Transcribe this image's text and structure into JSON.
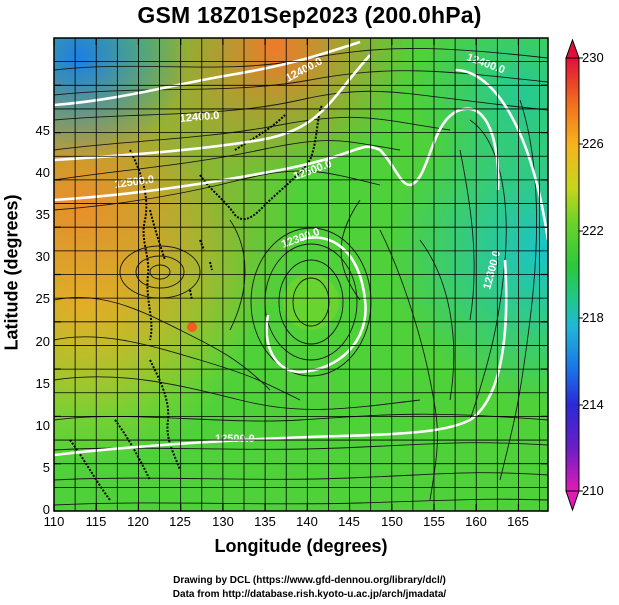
{
  "title": "GSM 18Z01Sep2023 (200.0hPa)",
  "xlabel": "Longitude (degrees)",
  "ylabel": "Latitude  (degrees)",
  "xticks": [
    "110",
    "115",
    "120",
    "125",
    "130",
    "135",
    "140",
    "145",
    "150",
    "155",
    "160",
    "165"
  ],
  "yticks": [
    "0",
    "5",
    "10",
    "15",
    "20",
    "25",
    "30",
    "35",
    "40",
    "45"
  ],
  "colorbar": {
    "ticks": [
      "230",
      "226",
      "222",
      "218",
      "214",
      "210"
    ],
    "colors": [
      "#e0103a",
      "#f26a1f",
      "#f6b41c",
      "#c7d51c",
      "#6cd329",
      "#2cc83c",
      "#1fc88d",
      "#20b7d6",
      "#1b73e8",
      "#2a2ad6",
      "#6a1ec8",
      "#e21ab7"
    ]
  },
  "contour_labels": [
    "12400.0",
    "12500.0",
    "12500.0",
    "12400.0",
    "12300.0",
    "12300.0",
    "12400.0",
    "12500.0"
  ],
  "credit": {
    "line1": "Drawing by DCL (https://www.gfd-dennou.org/library/dcl/)",
    "line2": "Data from http://database.rish.kyoto-u.ac.jp/arch/jmadata/"
  }
}
